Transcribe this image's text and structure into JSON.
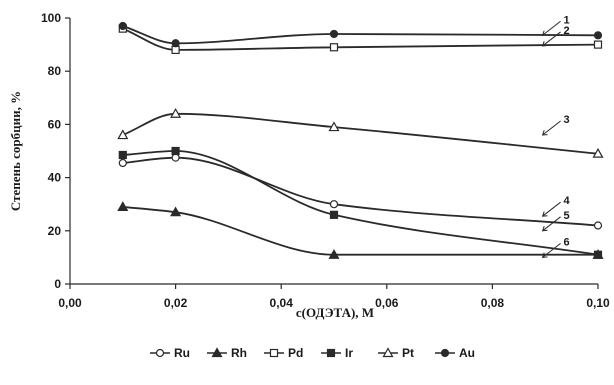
{
  "chart_data": {
    "type": "line",
    "xlabel": "c(ОДЭТА), М",
    "ylabel": "Степень сорбции, %",
    "xlim": [
      0,
      0.1
    ],
    "ylim": [
      0,
      100
    ],
    "x_ticks": [
      "0,00",
      "0,02",
      "0,04",
      "0,06",
      "0,08",
      "0,10"
    ],
    "y_ticks": [
      "0",
      "20",
      "40",
      "60",
      "80",
      "100"
    ],
    "grid": false,
    "legend_position": "bottom",
    "color": "#2a2a2a",
    "x": [
      0.01,
      0.02,
      0.05,
      0.1
    ],
    "series": [
      {
        "name": "Ru",
        "marker": "circle-open",
        "values": [
          45.5,
          47.5,
          30,
          22
        ]
      },
      {
        "name": "Rh",
        "marker": "triangle-filled",
        "values": [
          29,
          27,
          11,
          11
        ]
      },
      {
        "name": "Pd",
        "marker": "square-open",
        "values": [
          96,
          88,
          89,
          90
        ]
      },
      {
        "name": "Ir",
        "marker": "square-filled",
        "values": [
          48.5,
          50,
          26,
          11
        ]
      },
      {
        "name": "Pt",
        "marker": "triangle-open",
        "values": [
          56,
          64,
          59,
          49
        ]
      },
      {
        "name": "Au",
        "marker": "circle-filled",
        "values": [
          97,
          90.5,
          94,
          93.5
        ]
      }
    ],
    "callouts": [
      {
        "label": "1",
        "x": 0.0895,
        "y": 93.5
      },
      {
        "label": "2",
        "x": 0.0895,
        "y": 89.5
      },
      {
        "label": "3",
        "x": 0.0895,
        "y": 56
      },
      {
        "label": "4",
        "x": 0.0895,
        "y": 25.5
      },
      {
        "label": "5",
        "x": 0.0895,
        "y": 20
      },
      {
        "label": "6",
        "x": 0.0895,
        "y": 10
      }
    ]
  }
}
